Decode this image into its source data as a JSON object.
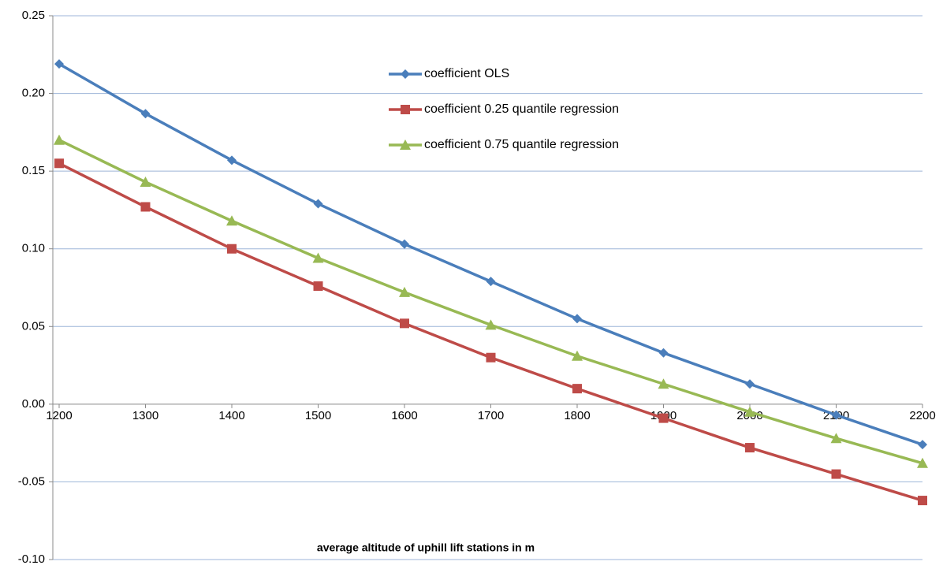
{
  "chart_data": {
    "type": "line",
    "x_label": "average altitude of uphill lift stations in m",
    "x": [
      1200,
      1300,
      1400,
      1500,
      1600,
      1700,
      1800,
      1900,
      2000,
      2100,
      2200
    ],
    "series": [
      {
        "name": "coefficient  OLS",
        "color": "#4a7ebb",
        "marker": "diamond",
        "values": [
          0.219,
          0.187,
          0.157,
          0.129,
          0.103,
          0.079,
          0.055,
          0.033,
          0.013,
          -0.007,
          -0.026
        ]
      },
      {
        "name": "coefficient 0.25 quantile regression",
        "color": "#be4b48",
        "marker": "square",
        "values": [
          0.155,
          0.127,
          0.1,
          0.076,
          0.052,
          0.03,
          0.01,
          -0.009,
          -0.028,
          -0.045,
          -0.062
        ]
      },
      {
        "name": "coefficient 0.75 quantile regression",
        "color": "#98b954",
        "marker": "triangle",
        "values": [
          0.17,
          0.143,
          0.118,
          0.094,
          0.072,
          0.051,
          0.031,
          0.013,
          -0.005,
          -0.022,
          -0.038
        ]
      }
    ],
    "xlim": [
      1200,
      2200
    ],
    "xticks": [
      1200,
      1300,
      1400,
      1500,
      1600,
      1700,
      1800,
      1900,
      2000,
      2100,
      2200
    ],
    "ylim": [
      -0.1,
      0.25
    ],
    "yticks": [
      {
        "value": -0.1,
        "label": "-0.10"
      },
      -0.05,
      {
        "value": 0,
        "label": "0.00"
      },
      0.05,
      {
        "value": 0.1,
        "label": "0.10"
      },
      0.15,
      {
        "value": 0.2,
        "label": "0.20"
      },
      0.25
    ],
    "grid": true
  }
}
